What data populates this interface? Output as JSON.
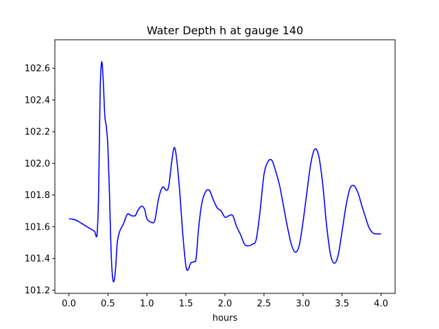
{
  "chart_data": {
    "type": "line",
    "title": "Water Depth h at gauge 140",
    "xlabel": "hours",
    "ylabel": "",
    "xlim": [
      -0.18,
      4.18
    ],
    "ylim": [
      101.18,
      102.78
    ],
    "x_ticks": [
      0.0,
      0.5,
      1.0,
      1.5,
      2.0,
      2.5,
      3.0,
      3.5,
      4.0
    ],
    "x_tick_labels": [
      "0.0",
      "0.5",
      "1.0",
      "1.5",
      "2.0",
      "2.5",
      "3.0",
      "3.5",
      "4.0"
    ],
    "y_ticks": [
      101.2,
      101.4,
      101.6,
      101.8,
      102.0,
      102.2,
      102.4,
      102.6
    ],
    "y_tick_labels": [
      "101.2",
      "101.4",
      "101.6",
      "101.8",
      "102.0",
      "102.2",
      "102.4",
      "102.6"
    ],
    "grid": false,
    "series": [
      {
        "color": "#0000ff",
        "x": [
          0.0,
          0.05,
          0.1,
          0.15,
          0.2,
          0.25,
          0.3,
          0.33,
          0.36,
          0.38,
          0.4,
          0.42,
          0.44,
          0.46,
          0.48,
          0.5,
          0.52,
          0.54,
          0.56,
          0.58,
          0.6,
          0.62,
          0.65,
          0.7,
          0.75,
          0.8,
          0.85,
          0.88,
          0.93,
          0.97,
          1.0,
          1.05,
          1.1,
          1.15,
          1.2,
          1.25,
          1.28,
          1.32,
          1.35,
          1.38,
          1.42,
          1.46,
          1.5,
          1.53,
          1.56,
          1.6,
          1.63,
          1.66,
          1.7,
          1.75,
          1.8,
          1.85,
          1.9,
          1.95,
          2.0,
          2.05,
          2.1,
          2.15,
          2.2,
          2.25,
          2.3,
          2.35,
          2.4,
          2.45,
          2.5,
          2.55,
          2.6,
          2.65,
          2.7,
          2.75,
          2.8,
          2.85,
          2.9,
          2.95,
          3.0,
          3.05,
          3.1,
          3.15,
          3.2,
          3.25,
          3.3,
          3.35,
          3.4,
          3.45,
          3.5,
          3.55,
          3.6,
          3.65,
          3.7,
          3.75,
          3.8,
          3.85,
          3.9,
          3.95,
          4.0
        ],
        "values": [
          101.65,
          101.648,
          101.64,
          101.625,
          101.61,
          101.595,
          101.58,
          101.57,
          101.55,
          101.8,
          102.45,
          102.64,
          102.52,
          102.3,
          102.23,
          102.1,
          101.8,
          101.45,
          101.28,
          101.26,
          101.35,
          101.5,
          101.57,
          101.62,
          101.68,
          101.67,
          101.67,
          101.7,
          101.73,
          101.71,
          101.65,
          101.63,
          101.64,
          101.78,
          101.85,
          101.83,
          101.86,
          102.02,
          102.1,
          102.03,
          101.82,
          101.55,
          101.35,
          101.33,
          101.37,
          101.38,
          101.4,
          101.58,
          101.74,
          101.82,
          101.83,
          101.77,
          101.72,
          101.7,
          101.66,
          101.67,
          101.67,
          101.6,
          101.55,
          101.49,
          101.48,
          101.49,
          101.52,
          101.7,
          101.93,
          102.01,
          102.02,
          101.95,
          101.86,
          101.73,
          101.6,
          101.49,
          101.44,
          101.48,
          101.63,
          101.82,
          102.0,
          102.09,
          102.05,
          101.88,
          101.62,
          101.43,
          101.37,
          101.42,
          101.57,
          101.73,
          101.84,
          101.86,
          101.82,
          101.74,
          101.66,
          101.59,
          101.56,
          101.555,
          101.555
        ]
      }
    ]
  }
}
